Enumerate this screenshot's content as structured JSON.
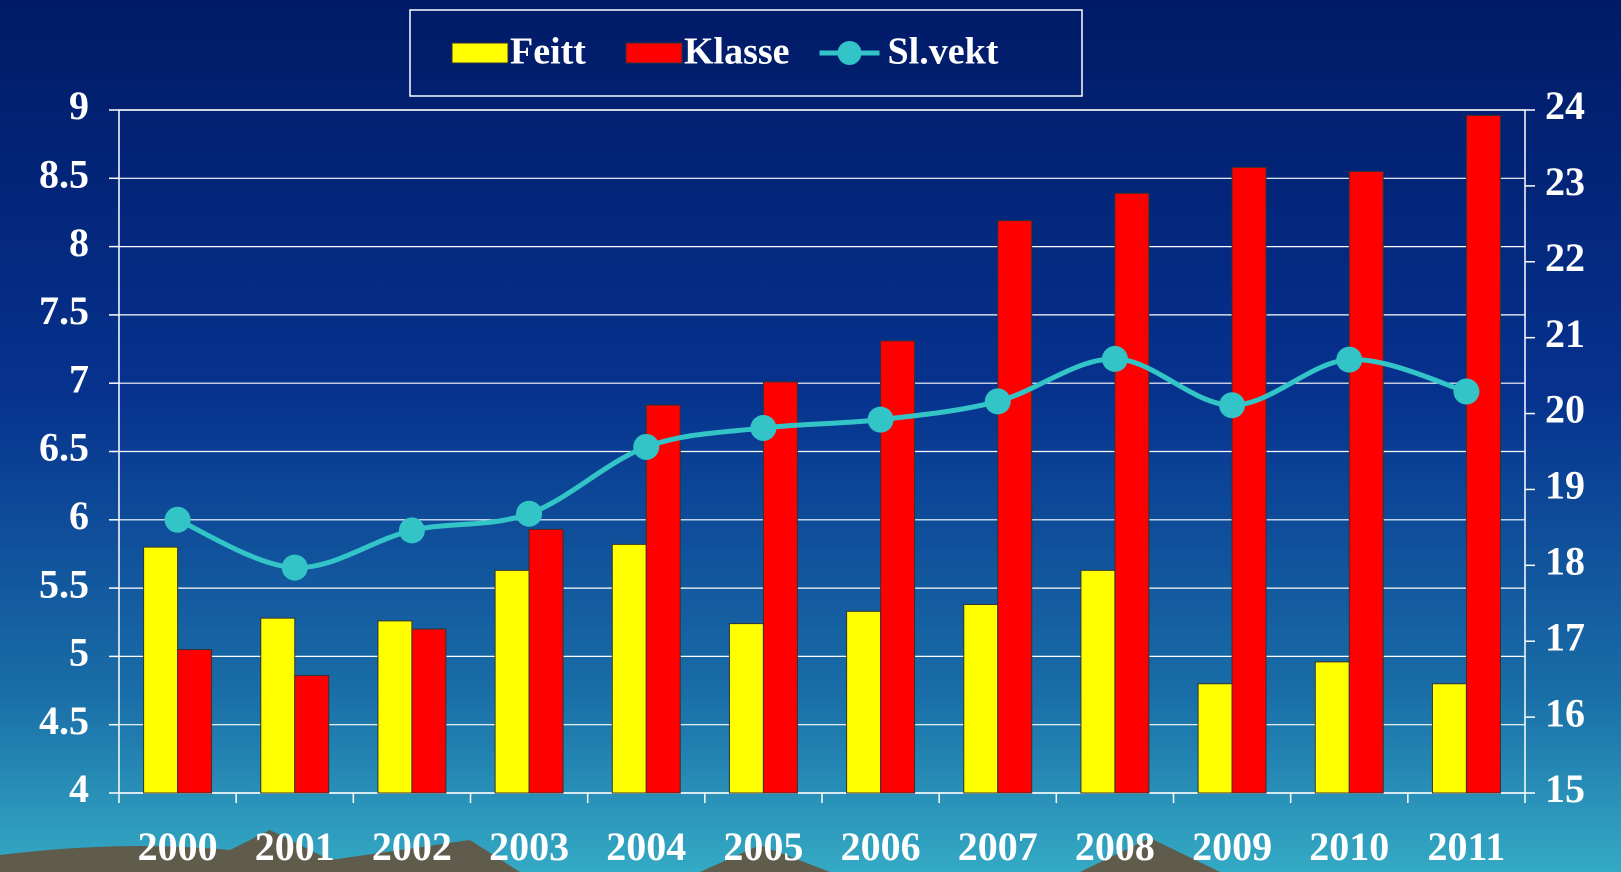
{
  "chart_data": {
    "type": "bar",
    "categories": [
      "2000",
      "2001",
      "2002",
      "2003",
      "2004",
      "2005",
      "2006",
      "2007",
      "2008",
      "2009",
      "2010",
      "2011"
    ],
    "series": [
      {
        "name": "Feitt",
        "color": "#ffff00",
        "type": "bar",
        "values": [
          5.8,
          5.28,
          5.26,
          5.63,
          5.82,
          5.24,
          5.33,
          5.38,
          5.63,
          4.8,
          4.96,
          4.8
        ]
      },
      {
        "name": "Klasse",
        "color": "#ff0000",
        "type": "bar",
        "values": [
          5.05,
          4.86,
          5.2,
          5.93,
          6.84,
          7.01,
          7.31,
          8.19,
          8.39,
          8.58,
          8.55,
          8.96
        ]
      },
      {
        "name": "Sl.vekt",
        "color": "#33c4c8",
        "type": "line",
        "axis": "y2",
        "values": [
          18.6,
          17.97,
          18.46,
          18.68,
          19.56,
          19.81,
          19.92,
          20.16,
          20.72,
          20.11,
          20.71,
          20.29
        ]
      }
    ],
    "ylim": [
      4,
      9
    ],
    "yticks": [
      4,
      4.5,
      5,
      5.5,
      6,
      6.5,
      7,
      7.5,
      8,
      8.5,
      9
    ],
    "y2lim": [
      15,
      24
    ],
    "y2ticks": [
      15,
      16,
      17,
      18,
      19,
      20,
      21,
      22,
      23,
      24
    ],
    "grid": true,
    "legend": "top"
  }
}
